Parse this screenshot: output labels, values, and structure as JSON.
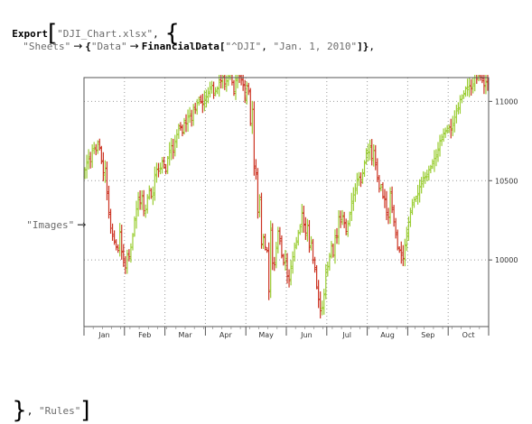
{
  "code": {
    "export_fn": "Export",
    "filename": "\"DJI_Chart.xlsx\"",
    "sheets_key": "\"Sheets\"",
    "data_key": "\"Data\"",
    "financial_fn": "FinancialData",
    "symbol": "\"^DJI\"",
    "start_date": "\"Jan. 1, 2010\"",
    "images_key": "\"Images\"",
    "rules_key": "\"Rules\"",
    "arrow": "→"
  },
  "colors": {
    "up": "#9ACD32",
    "down": "#CC3322",
    "frame": "#555555",
    "grid": "#999999"
  },
  "chart_data": {
    "type": "bar",
    "subtype": "ohlc",
    "title": "",
    "xlabel": "",
    "ylabel": "",
    "x_tick_labels": [
      "Jan",
      "Feb",
      "Mar",
      "Apr",
      "May",
      "Jun",
      "Jul",
      "Aug",
      "Sep",
      "Oct"
    ],
    "y_ticks": [
      10000,
      10500,
      11000
    ],
    "y_tick_labels": [
      "10000",
      "10500",
      "11000"
    ],
    "ylim": [
      9580,
      11150
    ],
    "grid": true,
    "legend": "none",
    "closes": [
      10570,
      10610,
      10650,
      10620,
      10690,
      10710,
      10690,
      10730,
      10710,
      10620,
      10550,
      10580,
      10420,
      10300,
      10200,
      10150,
      10120,
      10080,
      10060,
      10180,
      10050,
      10000,
      9950,
      10030,
      10020,
      10080,
      10150,
      10260,
      10320,
      10380,
      10360,
      10400,
      10310,
      10320,
      10390,
      10450,
      10400,
      10410,
      10540,
      10570,
      10560,
      10580,
      10620,
      10600,
      10560,
      10640,
      10690,
      10720,
      10680,
      10750,
      10790,
      10830,
      10840,
      10800,
      10880,
      10860,
      10900,
      10920,
      10880,
      10950,
      10950,
      10990,
      11010,
      11000,
      10980,
      11020,
      11030,
      11050,
      11090,
      11100,
      11040,
      11070,
      11080,
      11120,
      11130,
      11150,
      11110,
      11130,
      11150,
      11200,
      11120,
      11050,
      11140,
      11180,
      11160,
      11140,
      11100,
      11020,
      11100,
      11060,
      10860,
      10950,
      10580,
      10550,
      10300,
      10380,
      10100,
      10140,
      10080,
      10060,
      9800,
      10200,
      9980,
      9970,
      10080,
      10180,
      10120,
      10030,
      9980,
      10010,
      9900,
      9870,
      9960,
      10020,
      10080,
      10120,
      10170,
      10210,
      10300,
      10220,
      10170,
      10220,
      10080,
      10120,
      10000,
      9940,
      9830,
      9750,
      9680,
      9700,
      9780,
      9940,
      9960,
      10020,
      10100,
      10030,
      10140,
      10150,
      10270,
      10240,
      10280,
      10230,
      10180,
      10230,
      10290,
      10370,
      10410,
      10440,
      10510,
      10520,
      10490,
      10550,
      10610,
      10690,
      10680,
      10710,
      10640,
      10690,
      10600,
      10520,
      10450,
      10460,
      10400,
      10380,
      10300,
      10270,
      10420,
      10330,
      10240,
      10160,
      10080,
      10060,
      10030,
      10010,
      10090,
      10170,
      10240,
      10300,
      10360,
      10380,
      10390,
      10420,
      10460,
      10480,
      10520,
      10520,
      10540,
      10570,
      10580,
      10620,
      10640,
      10650,
      10700,
      10750,
      10760,
      10800,
      10810,
      10830,
      10840,
      10820,
      10860,
      10900,
      10940,
      10960,
      11010,
      11020,
      11050,
      11080,
      11090,
      11100,
      11080,
      11110,
      11150,
      11140,
      11170,
      11150,
      11130,
      11100,
      11120,
      11110
    ]
  }
}
